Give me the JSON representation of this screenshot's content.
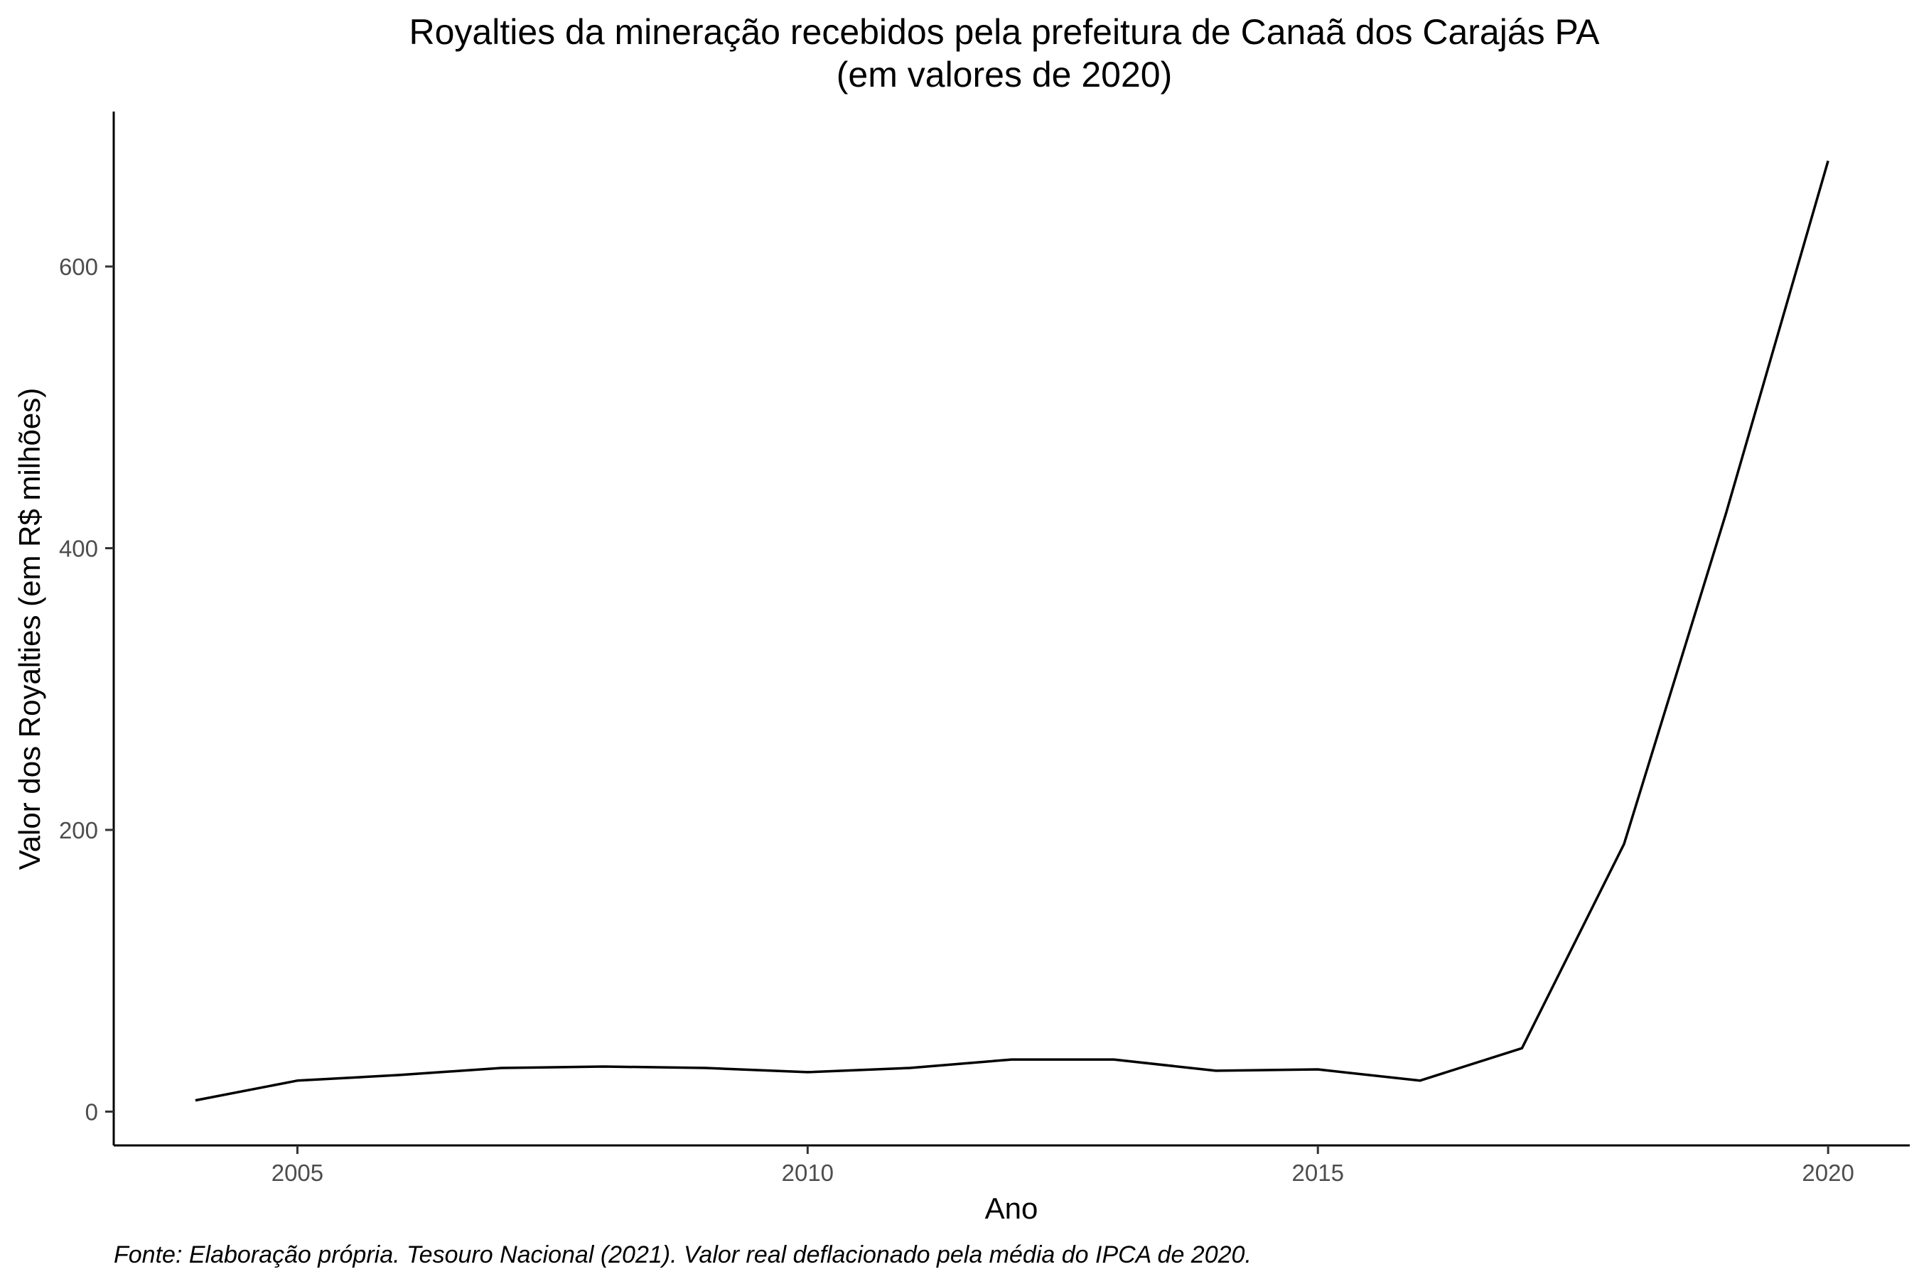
{
  "chart_data": {
    "type": "line",
    "title": "Royalties da mineração recebidos pela prefeitura de Canaã dos Carajás PA",
    "subtitle": "(em valores de 2020)",
    "xlabel": "Ano",
    "ylabel": "Valor dos Royalties (em R$ milhões)",
    "caption": "Fonte: Elaboração própria. Tesouro Nacional (2021). Valor real deflacionado pela média do IPCA de 2020.",
    "x_ticks": [
      2005,
      2010,
      2015,
      2020
    ],
    "y_ticks": [
      0,
      200,
      400,
      600
    ],
    "xlim": [
      2003.2,
      2020.8
    ],
    "ylim": [
      -24,
      710
    ],
    "grid": false,
    "line_color": "#000000",
    "series": [
      {
        "x": [
          2004,
          2005,
          2006,
          2007,
          2008,
          2009,
          2010,
          2011,
          2012,
          2013,
          2014,
          2015,
          2016,
          2017,
          2018,
          2019,
          2020
        ],
        "values": [
          8,
          22,
          26,
          31,
          32,
          31,
          28,
          31,
          37,
          37,
          29,
          30,
          22,
          45,
          190,
          425,
          675
        ]
      }
    ]
  }
}
